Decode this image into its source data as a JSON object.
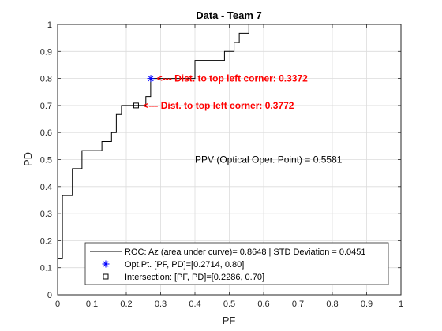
{
  "chart_data": {
    "type": "line",
    "title": "Data - Team 7",
    "xlabel": "PF",
    "ylabel": "PD",
    "xlim": [
      0,
      1
    ],
    "ylim": [
      0,
      1
    ],
    "grid": true,
    "x_ticks": [
      "0",
      "0.1",
      "0.2",
      "0.3",
      "0.4",
      "0.5",
      "0.6",
      "0.7",
      "0.8",
      "0.9",
      "1"
    ],
    "y_ticks": [
      "0",
      "0.1",
      "0.2",
      "0.3",
      "0.4",
      "0.5",
      "0.6",
      "0.7",
      "0.8",
      "0.9",
      "1"
    ],
    "series": [
      {
        "name": "ROC: Az (area under curve)= 0.8648 | STD Deviation = 0.0451",
        "color": "#000000",
        "marker": "line",
        "x": [
          0,
          0,
          0.014,
          0.014,
          0.043,
          0.043,
          0.071,
          0.071,
          0.129,
          0.129,
          0.157,
          0.157,
          0.171,
          0.171,
          0.186,
          0.186,
          0.214,
          0.214,
          0.229,
          0.229,
          0.257,
          0.257,
          0.271,
          0.271,
          0.314,
          0.314,
          0.4,
          0.4,
          0.486,
          0.486,
          0.514,
          0.514,
          0.529,
          0.529,
          0.557,
          0.557,
          1
        ],
        "y": [
          0,
          0.133,
          0.133,
          0.367,
          0.367,
          0.467,
          0.467,
          0.533,
          0.533,
          0.567,
          0.567,
          0.6,
          0.6,
          0.667,
          0.667,
          0.7,
          0.7,
          0.7,
          0.7,
          0.7,
          0.7,
          0.733,
          0.733,
          0.8,
          0.8,
          0.8,
          0.8,
          0.867,
          0.867,
          0.9,
          0.9,
          0.933,
          0.933,
          0.967,
          0.967,
          1,
          1
        ]
      },
      {
        "name": "Opt.Pt. [PF, PD]=[0.2714, 0.80]",
        "color": "#0000ff",
        "marker": "asterisk",
        "x": [
          0.2714
        ],
        "y": [
          0.8
        ]
      },
      {
        "name": "Intersection: [PF, PD]=[0.2286, 0.70]",
        "color": "#000000",
        "marker": "square",
        "x": [
          0.2286
        ],
        "y": [
          0.7
        ]
      }
    ],
    "annotations": [
      {
        "text": "<--- Dist. to top left corner: 0.3372",
        "x": 0.28,
        "y": 0.8,
        "color": "#ff0000"
      },
      {
        "text": "<--- Dist. to top left corner: 0.3772",
        "x": 0.24,
        "y": 0.7,
        "color": "#ff0000"
      },
      {
        "text": "PPV (Optical Oper. Point) = 0.5581",
        "x": 0.4,
        "y": 0.5,
        "color": "#000000"
      }
    ],
    "legend_placement": "bottom-right"
  }
}
